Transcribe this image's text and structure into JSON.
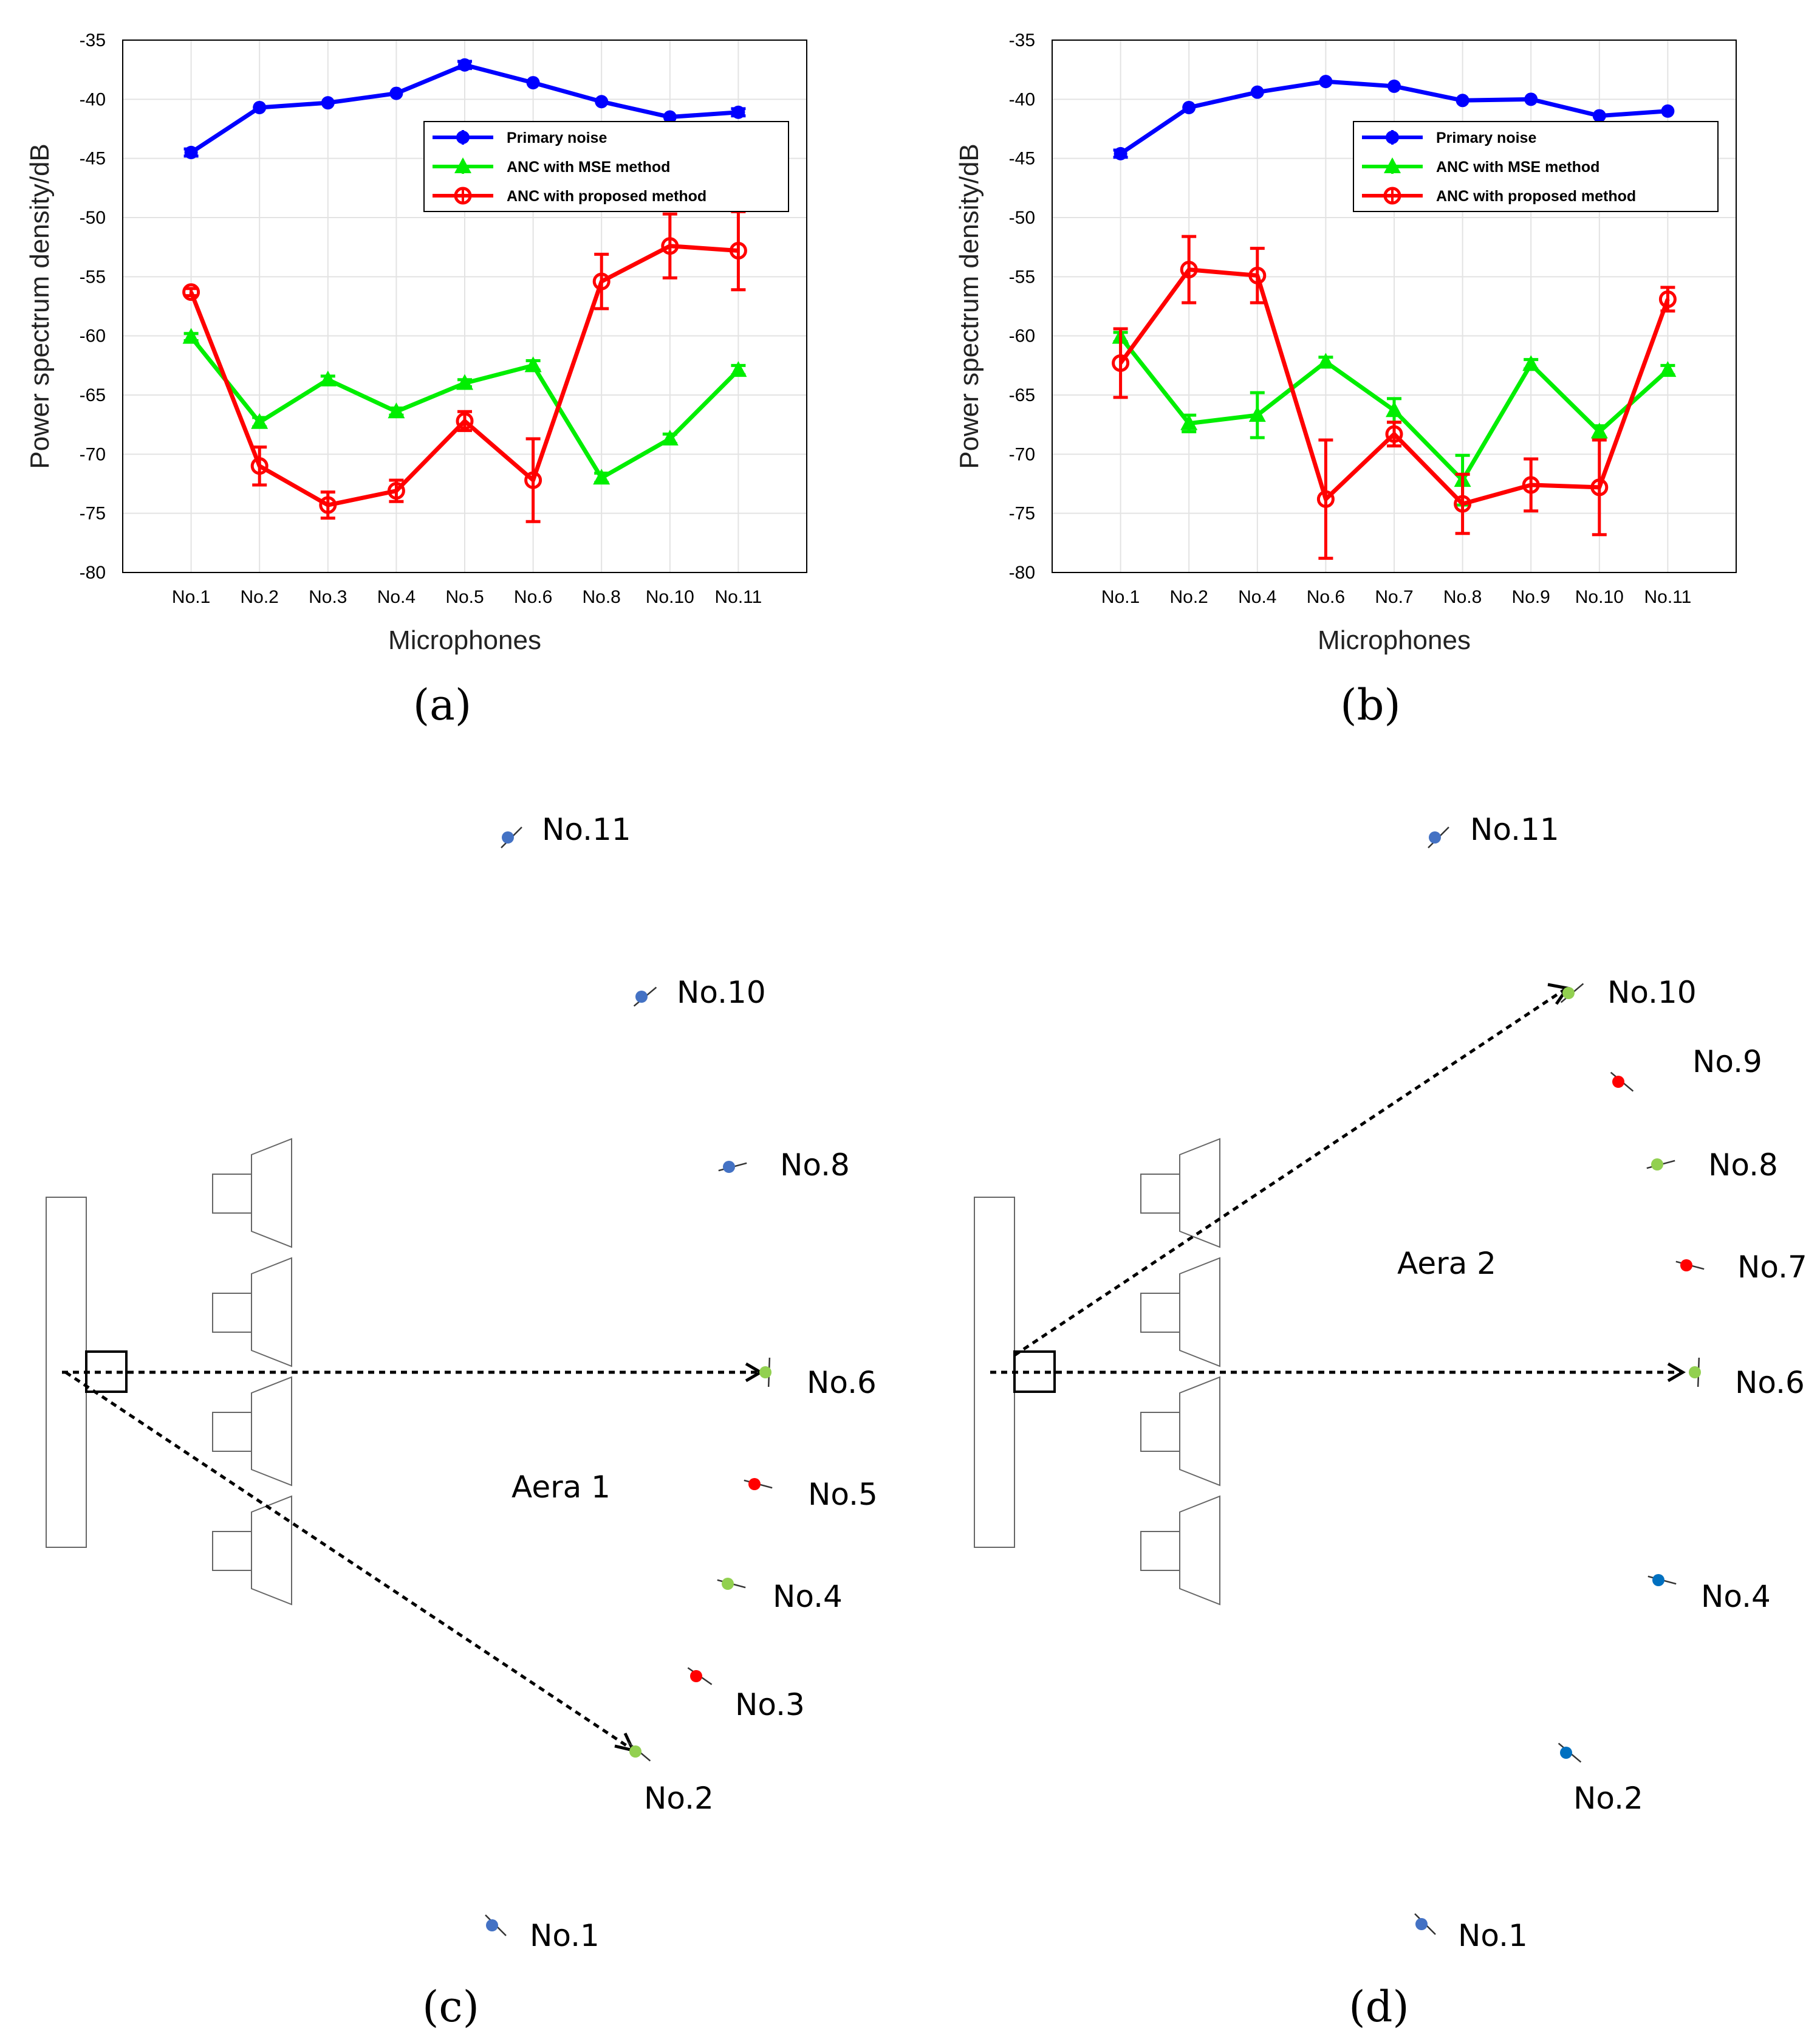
{
  "chart_data": [
    {
      "type": "line",
      "panel_label": "(a)",
      "xlabel": "Microphones",
      "ylabel": "Power spectrum density/dB",
      "ylim": [
        -80,
        -35
      ],
      "yticks": [
        "-35",
        "-40",
        "-45",
        "-50",
        "-55",
        "-60",
        "-65",
        "-70",
        "-75",
        "-80"
      ],
      "grid": true,
      "legend_position": "top-right",
      "categories": [
        "No.1",
        "No.2",
        "No.3",
        "No.4",
        "No.5",
        "No.6",
        "No.8",
        "No.10",
        "No.11"
      ],
      "series": [
        {
          "name": "Primary noise",
          "color": "#0000ff",
          "marker": "dot",
          "values": [
            -44.5,
            -40.7,
            -40.3,
            -39.5,
            -37.1,
            -38.6,
            -40.2,
            -41.5,
            -41.1
          ],
          "errors": [
            0.3,
            0.2,
            0.2,
            0.2,
            0.3,
            0.2,
            0.2,
            0.2,
            0.3
          ]
        },
        {
          "name": "ANC with MSE method",
          "color": "#00ee00",
          "marker": "triangle",
          "values": [
            -60.1,
            -67.3,
            -63.7,
            -66.4,
            -64.0,
            -62.5,
            -72.0,
            -68.7,
            -62.9
          ],
          "errors": [
            0.3,
            0.4,
            0.3,
            0.3,
            0.3,
            0.4,
            0.4,
            0.4,
            0.4
          ]
        },
        {
          "name": "ANC with proposed method",
          "color": "#ff0000",
          "marker": "circle",
          "values": [
            -56.3,
            -71.0,
            -74.3,
            -73.1,
            -67.2,
            -72.2,
            -55.4,
            -52.4,
            -52.8
          ],
          "errors": [
            0.3,
            1.6,
            1.1,
            0.9,
            0.8,
            3.5,
            2.3,
            2.7,
            3.3
          ]
        }
      ]
    },
    {
      "type": "line",
      "panel_label": "(b)",
      "xlabel": "Microphones",
      "ylabel": "Power spectrum density/dB",
      "ylim": [
        -80,
        -35
      ],
      "yticks": [
        "-35",
        "-40",
        "-45",
        "-50",
        "-55",
        "-60",
        "-65",
        "-70",
        "-75",
        "-80"
      ],
      "grid": true,
      "legend_position": "top-right",
      "categories": [
        "No.1",
        "No.2",
        "No.4",
        "No.6",
        "No.7",
        "No.8",
        "No.9",
        "No.10",
        "No.11"
      ],
      "series": [
        {
          "name": "Primary noise",
          "color": "#0000ff",
          "marker": "dot",
          "values": [
            -44.6,
            -40.7,
            -39.4,
            -38.5,
            -38.9,
            -40.1,
            -40.0,
            -41.4,
            -41.0
          ],
          "errors": [
            0.3,
            0.2,
            0.2,
            0.2,
            0.2,
            0.2,
            0.2,
            0.2,
            0.2
          ]
        },
        {
          "name": "ANC with MSE method",
          "color": "#00ee00",
          "marker": "triangle",
          "values": [
            -60.1,
            -67.4,
            -66.7,
            -62.2,
            -66.3,
            -72.2,
            -62.4,
            -68.1,
            -62.9
          ],
          "errors": [
            0.4,
            0.7,
            1.9,
            0.4,
            1.0,
            2.1,
            0.4,
            0.5,
            0.4
          ]
        },
        {
          "name": "ANC with proposed method",
          "color": "#ff0000",
          "marker": "circle",
          "values": [
            -62.3,
            -54.4,
            -54.9,
            -73.8,
            -68.3,
            -74.2,
            -72.6,
            -72.8,
            -56.9
          ],
          "errors": [
            2.9,
            2.8,
            2.3,
            5.0,
            1.0,
            2.5,
            2.2,
            4.0,
            1.0
          ]
        }
      ]
    }
  ],
  "panels": {
    "c": {
      "label": "(c)",
      "area_label": "Aera 1"
    },
    "d": {
      "label": "(d)",
      "area_label": "Aera 2"
    }
  },
  "microphone_colors": {
    "blue": "#4472c4",
    "green": "#92d050",
    "red": "#ff0000",
    "darkblue": "#0070c0"
  },
  "diagram_c_mics": [
    {
      "label": "No.11",
      "color": "blue"
    },
    {
      "label": "No.10",
      "color": "blue"
    },
    {
      "label": "No.8",
      "color": "blue"
    },
    {
      "label": "No.6",
      "color": "green"
    },
    {
      "label": "No.5",
      "color": "red"
    },
    {
      "label": "No.4",
      "color": "green"
    },
    {
      "label": "No.3",
      "color": "red"
    },
    {
      "label": "No.2",
      "color": "green"
    },
    {
      "label": "No.1",
      "color": "blue"
    }
  ],
  "diagram_d_mics": [
    {
      "label": "No.11",
      "color": "blue"
    },
    {
      "label": "No.10",
      "color": "green"
    },
    {
      "label": "No.9",
      "color": "red"
    },
    {
      "label": "No.8",
      "color": "green"
    },
    {
      "label": "No.7",
      "color": "red"
    },
    {
      "label": "No.6",
      "color": "green"
    },
    {
      "label": "No.4",
      "color": "darkblue"
    },
    {
      "label": "No.2",
      "color": "darkblue"
    },
    {
      "label": "No.1",
      "color": "blue"
    }
  ]
}
